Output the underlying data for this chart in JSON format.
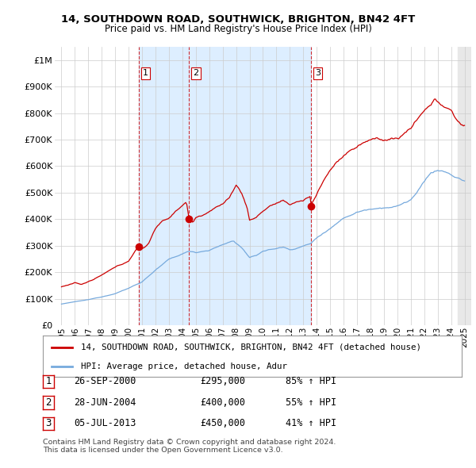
{
  "title": "14, SOUTHDOWN ROAD, SOUTHWICK, BRIGHTON, BN42 4FT",
  "subtitle": "Price paid vs. HM Land Registry's House Price Index (HPI)",
  "legend_red": "14, SOUTHDOWN ROAD, SOUTHWICK, BRIGHTON, BN42 4FT (detached house)",
  "legend_blue": "HPI: Average price, detached house, Adur",
  "transactions": [
    {
      "num": 1,
      "date": "26-SEP-2000",
      "price": 295000,
      "pct": "85%",
      "dir": "↑"
    },
    {
      "num": 2,
      "date": "28-JUN-2004",
      "price": 400000,
      "pct": "55%",
      "dir": "↑"
    },
    {
      "num": 3,
      "date": "05-JUL-2013",
      "price": 450000,
      "pct": "41%",
      "dir": "↑"
    }
  ],
  "footnote1": "Contains HM Land Registry data © Crown copyright and database right 2024.",
  "footnote2": "This data is licensed under the Open Government Licence v3.0.",
  "red_color": "#cc0000",
  "blue_color": "#77aadd",
  "shade_color": "#ddeeff",
  "grid_color": "#cccccc",
  "background_color": "#ffffff",
  "ylim": [
    0,
    1050000
  ],
  "yticks": [
    0,
    100000,
    200000,
    300000,
    400000,
    500000,
    600000,
    700000,
    800000,
    900000,
    1000000
  ],
  "t_years": [
    2000.75,
    2004.5,
    2013.583
  ],
  "t_prices": [
    295000,
    400000,
    450000
  ],
  "xlim_left": 1994.5,
  "xlim_right": 2025.5
}
